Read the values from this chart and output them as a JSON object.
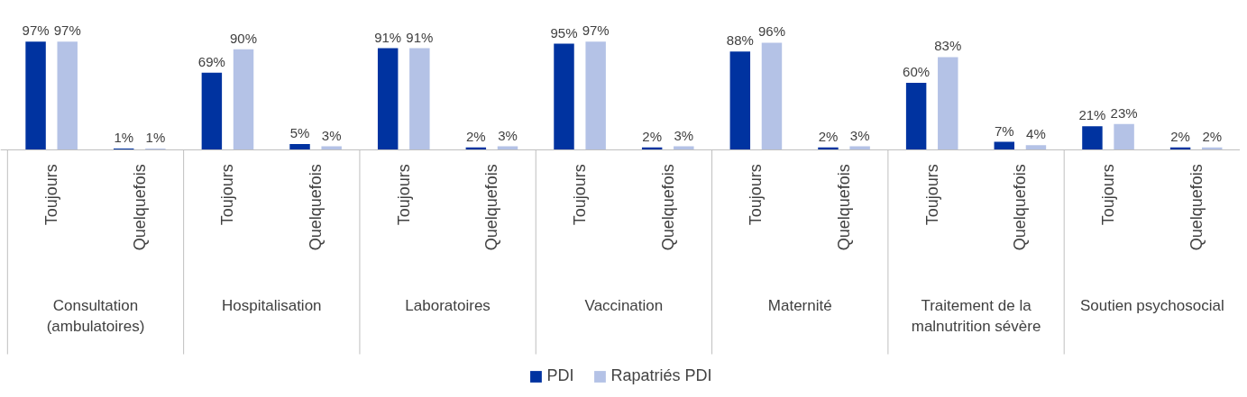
{
  "chart_data": {
    "type": "bar",
    "categories": [
      "Toujours",
      "Quelquefois",
      "Toujours",
      "Quelquefois",
      "Toujours",
      "Quelquefois",
      "Toujours",
      "Quelquefois",
      "Toujours",
      "Quelquefois",
      "Toujours",
      "Quelquefois",
      "Toujours",
      "Quelquefois"
    ],
    "series": [
      {
        "name": "PDI",
        "color": "#0033a0",
        "values": [
          97,
          1,
          69,
          5,
          91,
          2,
          95,
          2,
          88,
          2,
          60,
          7,
          21,
          2
        ],
        "value_labels": [
          "97%",
          "1%",
          "69%",
          "5%",
          "91%",
          "2%",
          "95%",
          "2%",
          "88%",
          "2%",
          "60%",
          "7%",
          "21%",
          "2%"
        ]
      },
      {
        "name": "Rapatriés PDI",
        "color": "#b4c2e6",
        "values": [
          97,
          1,
          90,
          3,
          91,
          3,
          97,
          3,
          96,
          3,
          83,
          4,
          23,
          2
        ],
        "value_labels": [
          "97%",
          "1%",
          "90%",
          "3%",
          "91%",
          "3%",
          "97%",
          "3%",
          "96%",
          "3%",
          "83%",
          "4%",
          "23%",
          "2%"
        ]
      }
    ],
    "annotations": [
      "Consultation (ambulatoires)",
      "Hospitalisation",
      "Laboratoires",
      "Vaccination",
      "Maternité",
      "Traitement de la malnutrition sévère",
      "Soutien psychosocial"
    ],
    "legend": "bottom"
  }
}
